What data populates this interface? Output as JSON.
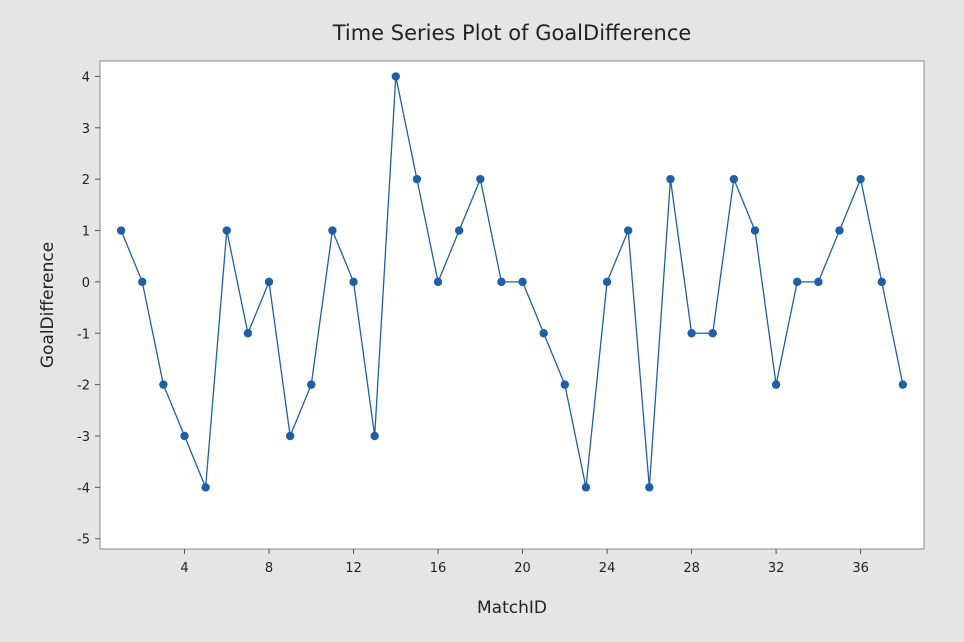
{
  "chart_data": {
    "type": "line",
    "title": "Time Series Plot of GoalDifference",
    "xlabel": "MatchID",
    "ylabel": "GoalDifference",
    "xlim": [
      0,
      39
    ],
    "ylim": [
      -5.2,
      4.3
    ],
    "x_ticks": [
      "4",
      "8",
      "12",
      "16",
      "20",
      "24",
      "28",
      "32",
      "36"
    ],
    "y_ticks": [
      "-5",
      "-4",
      "-3",
      "-2",
      "-1",
      "0",
      "1",
      "2",
      "3",
      "4"
    ],
    "grid": false,
    "markers": true,
    "series": [
      {
        "x": [
          1,
          2,
          3,
          4,
          5,
          6,
          7,
          8,
          9,
          10,
          11,
          12,
          13,
          14,
          15,
          16,
          17,
          18,
          19,
          20,
          21,
          22,
          23,
          24,
          25,
          26,
          27,
          28,
          29,
          30,
          31,
          32,
          33,
          34,
          35,
          36,
          37,
          38
        ],
        "values": [
          1,
          0,
          -2,
          -3,
          -4,
          1,
          -1,
          0,
          -3,
          -2,
          1,
          0,
          -3,
          4,
          2,
          0,
          1,
          2,
          0,
          0,
          -1,
          -2,
          -4,
          0,
          1,
          -4,
          2,
          -1,
          -1,
          2,
          1,
          -2,
          0,
          0,
          1,
          2,
          0,
          -2
        ],
        "color": "#1f5fa6"
      }
    ]
  }
}
